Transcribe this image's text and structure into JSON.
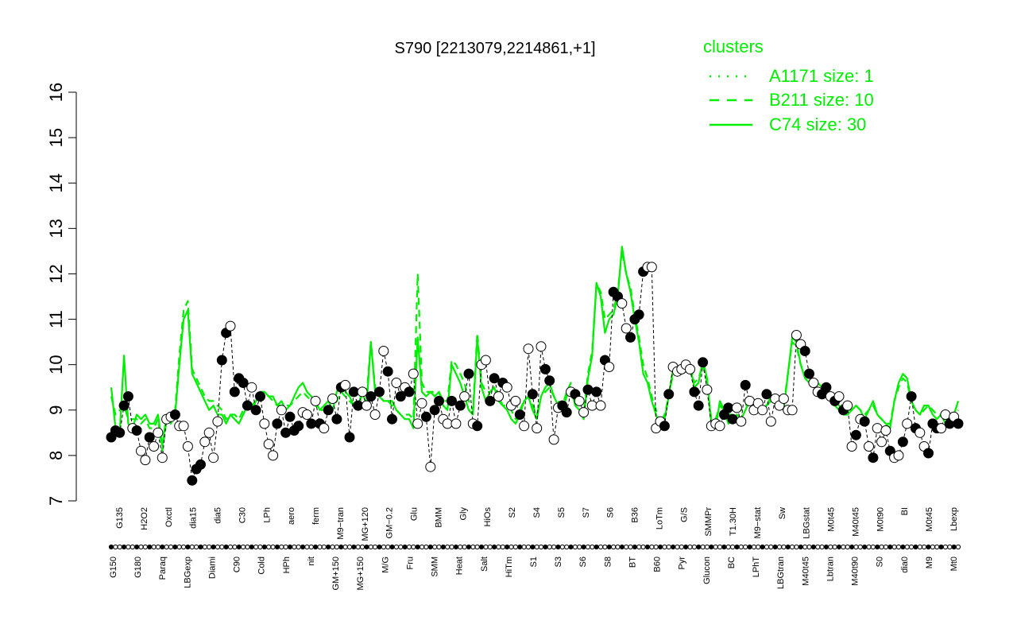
{
  "chart_data": {
    "type": "line",
    "title": "S790 [2213079,2214861,+1]",
    "xlabel": "",
    "ylabel": "",
    "ylim": [
      7,
      16
    ],
    "y_ticks": [
      7,
      8,
      9,
      10,
      11,
      12,
      13,
      14,
      15,
      16
    ],
    "x_tick_labels_top": [
      "G135",
      "H2O2",
      "Oxctl",
      "dia15",
      "dia5",
      "C30",
      "LPh",
      "aero",
      "ferm",
      "M9−tran",
      "MG+120",
      "GM−0.2",
      "Glu",
      "BMM",
      "Gly",
      "HiOs",
      "S2",
      "S4",
      "S5",
      "S7",
      "S6",
      "B36",
      "LoTm",
      "G/S",
      "SMMPr",
      "T1.30H",
      "M9−stat",
      "Sw",
      "LBGstat",
      "M0t45",
      "M40t45",
      "M0t90",
      "BI",
      "M0t45",
      "Lbexp"
    ],
    "x_tick_labels_bottom": [
      "G150",
      "G180",
      "Paraq",
      "LBGexp",
      "Diami",
      "C90",
      "Cold",
      "HPh",
      "nit",
      "GM+150",
      "MG+150",
      "M/G",
      "Fru",
      "SMM",
      "Heat",
      "Salt",
      "HiTm",
      "S1",
      "S3",
      "S6",
      "S8",
      "BT",
      "B60",
      "Pyr",
      "Glucon",
      "BC",
      "LPhT",
      "LBGtran",
      "M40t45",
      "Lbtran",
      "M40t90",
      "S0",
      "dia0",
      "M9",
      "Mt0"
    ],
    "x_count": 200,
    "series": [
      {
        "name": "C74 size: 30",
        "line_style": "solid",
        "color": "#00ee00",
        "values": [
          9.5,
          8.6,
          8.5,
          10.2,
          8.7,
          8.6,
          8.9,
          8.8,
          8.9,
          8.7,
          8.7,
          8.9,
          8.2,
          8.9,
          8.7,
          8.9,
          10.0,
          11.0,
          11.2,
          9.8,
          9.6,
          9.4,
          9.2,
          9.0,
          9.1,
          8.9,
          8.9,
          8.7,
          8.9,
          8.8,
          8.7,
          8.9,
          9.1,
          9.0,
          9.2,
          9.4,
          9.4,
          9.3,
          9.3,
          9.1,
          9.2,
          9.0,
          9.1,
          9.3,
          9.5,
          9.6,
          9.4,
          9.3,
          9.2,
          9.0,
          9.1,
          9.2,
          9.0,
          9.4,
          9.6,
          9.4,
          9.3,
          9.1,
          9.0,
          9.4,
          9.1,
          10.5,
          9.4,
          9.3,
          9.2,
          9.2,
          9.2,
          9.0,
          8.9,
          8.8,
          8.8,
          8.6,
          10.6,
          9.4,
          9.3,
          9.4,
          9.3,
          9.4,
          9.1,
          9.0,
          10.0,
          9.8,
          9.6,
          9.3,
          9.0,
          8.9,
          10.6,
          9.5,
          9.2,
          9.4,
          9.5,
          9.2,
          9.1,
          9.0,
          8.8,
          8.7,
          8.9,
          9.2,
          9.3,
          9.0,
          8.8,
          9.3,
          9.5,
          9.6,
          9.3,
          9.1,
          9.0,
          9.3,
          9.5,
          9.1,
          9.0,
          8.8,
          9.7,
          10.2,
          11.8,
          11.5,
          10.7,
          11.0,
          11.1,
          11.5,
          12.6,
          12.0,
          11.6,
          11.0,
          10.5,
          9.8,
          9.6,
          9.2,
          8.9,
          8.6,
          8.8,
          9.3,
          9.9,
          9.8,
          9.8,
          9.9,
          10.0,
          9.5,
          9.6,
          10.1,
          9.7,
          8.7,
          8.6,
          9.2,
          9.0,
          8.7,
          8.8,
          8.9,
          8.8,
          9.0,
          9.2,
          9.1,
          9.0,
          9.0,
          9.1,
          9.3,
          9.2,
          9.1,
          9.0,
          9.8,
          10.6,
          10.5,
          10.0,
          9.7,
          9.6,
          9.5,
          9.6,
          9.5,
          9.5,
          9.3,
          9.1,
          9.0,
          8.9,
          8.9,
          9.0,
          9.1,
          9.0,
          8.8,
          9.0,
          9.2,
          8.9,
          8.8,
          8.7,
          8.6,
          9.2,
          9.6,
          9.8,
          9.7,
          9.2,
          9.0,
          8.9,
          9.1,
          9.1,
          8.9,
          8.8,
          8.9,
          8.7,
          8.8,
          8.9,
          9.2
        ]
      },
      {
        "name": "B211 size: 10",
        "line_style": "dashed",
        "color": "#00ee00",
        "values": [
          9.3,
          8.9,
          9.0,
          9.1,
          8.8,
          8.8,
          8.8,
          8.7,
          8.8,
          8.6,
          8.6,
          8.8,
          8.1,
          8.8,
          8.8,
          9.0,
          10.2,
          11.2,
          11.4,
          9.9,
          9.7,
          9.5,
          9.3,
          9.2,
          9.2,
          9.1,
          9.0,
          8.8,
          8.9,
          8.9,
          8.8,
          9.0,
          9.2,
          9.1,
          9.2,
          9.3,
          9.4,
          9.3,
          9.2,
          9.1,
          9.1,
          9.1,
          9.1,
          9.2,
          9.3,
          9.4,
          9.3,
          9.2,
          9.1,
          9.0,
          9.0,
          9.1,
          9.0,
          9.2,
          9.4,
          9.3,
          9.2,
          9.1,
          9.0,
          9.5,
          9.3,
          10.5,
          9.5,
          9.3,
          9.2,
          9.2,
          9.1,
          9.0,
          8.9,
          8.9,
          8.9,
          8.8,
          12.0,
          9.6,
          9.4,
          9.4,
          9.4,
          9.4,
          9.2,
          9.2,
          10.1,
          10.0,
          9.8,
          9.6,
          9.2,
          9.0,
          10.7,
          9.6,
          9.4,
          9.4,
          9.5,
          9.3,
          9.1,
          9.1,
          9.0,
          8.8,
          9.0,
          9.2,
          9.3,
          9.1,
          8.9,
          9.3,
          9.4,
          9.5,
          9.3,
          9.2,
          9.1,
          9.4,
          9.6,
          9.2,
          9.1,
          8.9,
          9.8,
          10.3,
          11.8,
          11.6,
          11.0,
          11.1,
          11.2,
          11.6,
          12.5,
          12.0,
          11.7,
          11.1,
          10.6,
          10.0,
          9.7,
          9.3,
          9.0,
          8.7,
          8.9,
          9.3,
          9.8,
          9.8,
          9.8,
          9.9,
          10.0,
          9.6,
          9.7,
          10.0,
          9.6,
          8.8,
          8.8,
          9.1,
          9.0,
          8.9,
          8.9,
          9.0,
          9.0,
          9.1,
          9.2,
          9.1,
          9.1,
          9.1,
          9.1,
          9.2,
          9.2,
          9.1,
          9.1,
          9.8,
          10.5,
          10.4,
          10.0,
          9.8,
          9.7,
          9.6,
          9.6,
          9.5,
          9.4,
          9.3,
          9.2,
          9.1,
          9.0,
          9.0,
          9.0,
          9.1,
          9.0,
          8.9,
          9.0,
          9.1,
          8.9,
          8.8,
          8.7,
          8.7,
          9.2,
          9.5,
          9.7,
          9.6,
          9.2,
          9.0,
          8.9,
          9.0,
          9.1,
          9.0,
          8.9,
          8.9,
          8.8,
          8.8,
          8.9,
          9.0
        ]
      },
      {
        "name": "A1171 size: 1",
        "line_style": "dotted",
        "color": "#00ee00",
        "values": []
      },
      {
        "name": "S790",
        "line_style": "dashed-black-with-points",
        "color": "#000000",
        "values": [
          8.4,
          8.55,
          8.5,
          9.1,
          9.3,
          8.6,
          8.55,
          8.1,
          7.9,
          8.4,
          8.2,
          8.5,
          7.95,
          8.8,
          8.85,
          8.9,
          8.65,
          8.65,
          8.2,
          7.45,
          7.7,
          7.8,
          8.3,
          8.5,
          7.95,
          8.75,
          10.1,
          10.7,
          10.85,
          9.4,
          9.7,
          9.6,
          9.1,
          9.5,
          9.0,
          9.3,
          8.7,
          8.25,
          8.0,
          8.7,
          9.0,
          8.5,
          8.85,
          8.55,
          8.65,
          8.95,
          8.9,
          8.7,
          9.2,
          8.7,
          8.6,
          9.0,
          9.25,
          8.8,
          9.5,
          9.55,
          8.4,
          9.4,
          9.1,
          9.4,
          9.1,
          9.3,
          8.9,
          9.4,
          10.3,
          9.85,
          8.8,
          9.6,
          9.3,
          9.5,
          9.4,
          9.8,
          8.7,
          9.15,
          8.85,
          7.75,
          9.0,
          9.2,
          8.8,
          8.7,
          9.2,
          8.7,
          9.1,
          9.3,
          9.8,
          8.7,
          8.65,
          10.0,
          10.1,
          9.2,
          9.7,
          9.3,
          9.6,
          9.5,
          9.1,
          9.2,
          8.9,
          8.65,
          10.35,
          9.35,
          8.6,
          10.4,
          9.9,
          9.65,
          8.35,
          9.05,
          9.1,
          8.95,
          9.4,
          9.35,
          9.2,
          8.95,
          9.45,
          9.1,
          9.4,
          9.1,
          10.1,
          9.95,
          11.6,
          11.5,
          11.35,
          10.8,
          10.6,
          11.0,
          11.1,
          12.05,
          12.15,
          12.15,
          8.6,
          8.75,
          8.65,
          9.35,
          9.95,
          9.85,
          9.9,
          10.0,
          9.9,
          9.4,
          9.1,
          10.05,
          9.45,
          8.65,
          8.7,
          8.65,
          8.9,
          9.05,
          8.8,
          9.05,
          8.75,
          9.55,
          9.2,
          9.0,
          9.15,
          9.0,
          9.35,
          8.75,
          9.25,
          9.1,
          9.25,
          9.0,
          9.0,
          10.65,
          10.45,
          10.3,
          9.8,
          9.6,
          9.4,
          9.35,
          9.5,
          9.3,
          9.2,
          9.3,
          9.0,
          9.1,
          8.2,
          8.45,
          8.8,
          8.75,
          8.2,
          7.95,
          8.6,
          8.3,
          8.55,
          8.1,
          7.95,
          8.0,
          8.3,
          8.7,
          9.3,
          8.6,
          8.5,
          8.2,
          8.05,
          8.7,
          8.6,
          8.6,
          8.9,
          8.7,
          8.85,
          8.7
        ]
      }
    ],
    "open_point_indices": [
      5,
      7,
      8,
      10,
      11,
      12,
      13,
      14,
      16,
      17,
      18,
      22,
      23,
      24,
      25,
      28,
      33,
      36,
      37,
      38,
      40,
      45,
      46,
      48,
      50,
      52,
      55,
      59,
      60,
      62,
      64,
      67,
      69,
      71,
      72,
      73,
      75,
      78,
      79,
      81,
      83,
      85,
      87,
      88,
      91,
      93,
      94,
      95,
      97,
      98,
      100,
      101,
      104,
      105,
      108,
      110,
      111,
      113,
      115,
      117,
      120,
      121,
      126,
      127,
      128,
      129,
      132,
      133,
      134,
      135,
      136,
      140,
      141,
      142,
      143,
      147,
      148,
      150,
      151,
      152,
      153,
      155,
      156,
      157,
      158,
      159,
      160,
      161,
      162,
      165,
      166,
      169,
      171,
      173,
      174,
      176,
      178,
      180,
      181,
      182,
      184,
      185,
      187,
      190,
      191,
      195,
      196,
      198
    ],
    "legend": {
      "title": "clusters",
      "position": "top-right",
      "entries": [
        "A1171 size: 1",
        "B211 size: 10",
        "C74 size: 30"
      ]
    },
    "grid": false
  }
}
